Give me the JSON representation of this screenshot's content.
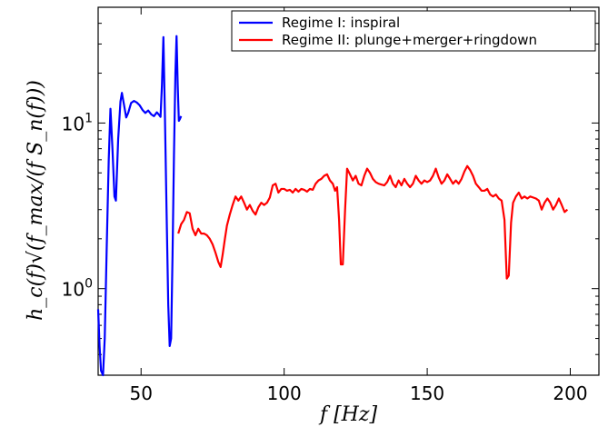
{
  "chart_data": {
    "type": "line",
    "xlabel": "f [Hz]",
    "ylabel": "h_c(f)√(f_max/(f S_n(f)))",
    "xlim": [
      35,
      210
    ],
    "ylim": [
      0.3,
      50
    ],
    "yscale": "log",
    "grid": false,
    "legend_position": "top-right",
    "x_ticks": [
      50,
      100,
      150,
      200
    ],
    "y_ticks": [
      {
        "value": 1,
        "label": "10",
        "exp": "0"
      },
      {
        "value": 10,
        "label": "10",
        "exp": "1"
      }
    ],
    "series": [
      {
        "name": "Regime I: inspiral",
        "color": "#0000ff",
        "points": [
          [
            35.0,
            0.75
          ],
          [
            35.5,
            0.45
          ],
          [
            36.0,
            0.32
          ],
          [
            36.7,
            0.3
          ],
          [
            37.3,
            0.5
          ],
          [
            38.0,
            1.8
          ],
          [
            38.7,
            6.0
          ],
          [
            39.3,
            12.2
          ],
          [
            40.0,
            7.0
          ],
          [
            40.7,
            3.6
          ],
          [
            41.2,
            3.4
          ],
          [
            42.0,
            8.0
          ],
          [
            42.8,
            13.5
          ],
          [
            43.3,
            15.2
          ],
          [
            44.0,
            13.0
          ],
          [
            44.8,
            10.8
          ],
          [
            45.5,
            11.5
          ],
          [
            46.5,
            13.2
          ],
          [
            47.5,
            13.6
          ],
          [
            48.5,
            13.3
          ],
          [
            49.5,
            12.8
          ],
          [
            50.5,
            12.0
          ],
          [
            51.5,
            11.5
          ],
          [
            52.5,
            11.9
          ],
          [
            53.5,
            11.3
          ],
          [
            54.5,
            11.0
          ],
          [
            55.5,
            11.6
          ],
          [
            56.3,
            11.2
          ],
          [
            56.8,
            10.9
          ],
          [
            57.3,
            17.0
          ],
          [
            57.8,
            33.0
          ],
          [
            58.3,
            12.0
          ],
          [
            58.9,
            3.0
          ],
          [
            59.5,
            0.8
          ],
          [
            60.0,
            0.45
          ],
          [
            60.5,
            0.5
          ],
          [
            61.0,
            1.6
          ],
          [
            61.5,
            6.5
          ],
          [
            62.0,
            20.0
          ],
          [
            62.4,
            33.5
          ],
          [
            62.8,
            17.0
          ],
          [
            63.2,
            10.3
          ],
          [
            63.6,
            10.6
          ],
          [
            64.0,
            11.0
          ]
        ]
      },
      {
        "name": "Regime II: plunge+merger+ringdown",
        "color": "#ff0000",
        "points": [
          [
            63.0,
            2.15
          ],
          [
            64.0,
            2.45
          ],
          [
            65.0,
            2.6
          ],
          [
            66.0,
            2.9
          ],
          [
            67.0,
            2.85
          ],
          [
            68.0,
            2.3
          ],
          [
            69.0,
            2.1
          ],
          [
            70.0,
            2.3
          ],
          [
            71.0,
            2.15
          ],
          [
            72.0,
            2.15
          ],
          [
            73.0,
            2.1
          ],
          [
            74.0,
            2.0
          ],
          [
            75.0,
            1.85
          ],
          [
            76.0,
            1.65
          ],
          [
            77.0,
            1.45
          ],
          [
            77.8,
            1.35
          ],
          [
            78.5,
            1.6
          ],
          [
            79.3,
            2.0
          ],
          [
            80.0,
            2.4
          ],
          [
            81.0,
            2.8
          ],
          [
            82.0,
            3.2
          ],
          [
            83.0,
            3.6
          ],
          [
            84.0,
            3.4
          ],
          [
            85.0,
            3.6
          ],
          [
            86.0,
            3.3
          ],
          [
            87.0,
            3.0
          ],
          [
            88.0,
            3.2
          ],
          [
            89.0,
            2.95
          ],
          [
            90.0,
            2.8
          ],
          [
            91.0,
            3.1
          ],
          [
            92.0,
            3.3
          ],
          [
            93.0,
            3.2
          ],
          [
            94.0,
            3.3
          ],
          [
            95.0,
            3.55
          ],
          [
            96.0,
            4.2
          ],
          [
            97.0,
            4.3
          ],
          [
            98.0,
            3.8
          ],
          [
            99.0,
            4.0
          ],
          [
            100.0,
            4.0
          ],
          [
            101.0,
            3.9
          ],
          [
            102.0,
            3.95
          ],
          [
            103.0,
            3.8
          ],
          [
            104.0,
            4.0
          ],
          [
            105.0,
            3.85
          ],
          [
            106.0,
            4.0
          ],
          [
            107.0,
            3.95
          ],
          [
            108.0,
            3.85
          ],
          [
            109.0,
            4.0
          ],
          [
            110.0,
            3.95
          ],
          [
            111.0,
            4.3
          ],
          [
            112.0,
            4.5
          ],
          [
            113.0,
            4.6
          ],
          [
            114.0,
            4.8
          ],
          [
            115.0,
            4.9
          ],
          [
            116.0,
            4.5
          ],
          [
            117.0,
            4.3
          ],
          [
            117.8,
            3.9
          ],
          [
            118.5,
            4.1
          ],
          [
            119.2,
            2.6
          ],
          [
            119.8,
            1.4
          ],
          [
            120.5,
            1.4
          ],
          [
            121.3,
            3.0
          ],
          [
            122.0,
            5.3
          ],
          [
            123.0,
            4.9
          ],
          [
            124.0,
            4.5
          ],
          [
            125.0,
            4.8
          ],
          [
            126.0,
            4.3
          ],
          [
            127.0,
            4.2
          ],
          [
            128.0,
            4.8
          ],
          [
            129.0,
            5.3
          ],
          [
            130.0,
            5.0
          ],
          [
            131.0,
            4.6
          ],
          [
            132.0,
            4.4
          ],
          [
            133.0,
            4.3
          ],
          [
            134.0,
            4.25
          ],
          [
            135.0,
            4.2
          ],
          [
            136.0,
            4.4
          ],
          [
            137.0,
            4.8
          ],
          [
            138.0,
            4.3
          ],
          [
            139.0,
            4.1
          ],
          [
            140.0,
            4.5
          ],
          [
            141.0,
            4.2
          ],
          [
            142.0,
            4.6
          ],
          [
            143.0,
            4.3
          ],
          [
            144.0,
            4.1
          ],
          [
            145.0,
            4.3
          ],
          [
            146.0,
            4.8
          ],
          [
            147.0,
            4.5
          ],
          [
            148.0,
            4.3
          ],
          [
            149.0,
            4.5
          ],
          [
            150.0,
            4.4
          ],
          [
            151.0,
            4.5
          ],
          [
            152.0,
            4.8
          ],
          [
            153.0,
            5.3
          ],
          [
            154.0,
            4.7
          ],
          [
            155.0,
            4.3
          ],
          [
            156.0,
            4.5
          ],
          [
            157.0,
            4.9
          ],
          [
            158.0,
            4.6
          ],
          [
            159.0,
            4.3
          ],
          [
            160.0,
            4.5
          ],
          [
            161.0,
            4.3
          ],
          [
            162.0,
            4.6
          ],
          [
            163.0,
            5.1
          ],
          [
            164.0,
            5.5
          ],
          [
            165.0,
            5.2
          ],
          [
            166.0,
            4.8
          ],
          [
            167.0,
            4.3
          ],
          [
            168.0,
            4.1
          ],
          [
            169.0,
            3.9
          ],
          [
            170.0,
            3.9
          ],
          [
            171.0,
            4.0
          ],
          [
            172.0,
            3.7
          ],
          [
            173.0,
            3.6
          ],
          [
            174.0,
            3.7
          ],
          [
            175.0,
            3.5
          ],
          [
            176.0,
            3.4
          ],
          [
            177.0,
            2.6
          ],
          [
            177.8,
            1.15
          ],
          [
            178.5,
            1.2
          ],
          [
            179.3,
            2.5
          ],
          [
            180.0,
            3.3
          ],
          [
            181.0,
            3.6
          ],
          [
            182.0,
            3.8
          ],
          [
            183.0,
            3.5
          ],
          [
            184.0,
            3.6
          ],
          [
            185.0,
            3.5
          ],
          [
            186.0,
            3.6
          ],
          [
            187.0,
            3.55
          ],
          [
            188.0,
            3.5
          ],
          [
            189.0,
            3.4
          ],
          [
            190.0,
            3.0
          ],
          [
            191.0,
            3.3
          ],
          [
            192.0,
            3.5
          ],
          [
            193.0,
            3.3
          ],
          [
            194.0,
            3.0
          ],
          [
            195.0,
            3.2
          ],
          [
            196.0,
            3.5
          ],
          [
            197.0,
            3.2
          ],
          [
            198.0,
            2.9
          ],
          [
            199.0,
            3.0
          ]
        ]
      }
    ]
  }
}
